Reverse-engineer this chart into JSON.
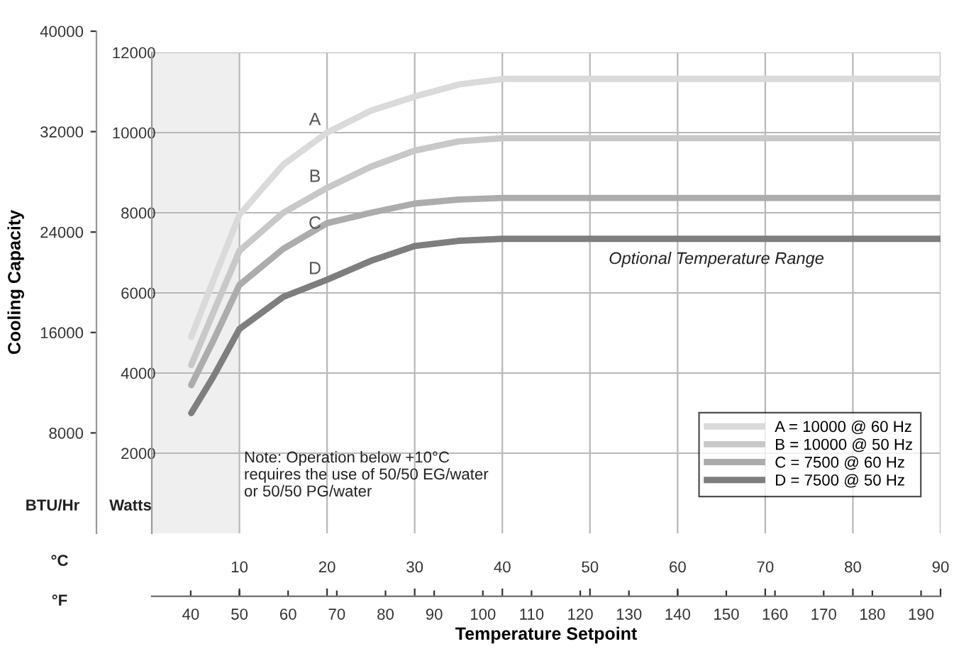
{
  "chart_data": {
    "type": "line",
    "xlabel": "Temperature Setpoint",
    "y2label": "Cooling Capacity",
    "x": [
      4.5,
      7,
      10,
      15,
      20,
      25,
      30,
      35,
      40,
      90
    ],
    "series": [
      {
        "name": "A = 10000 @ 60 Hz",
        "color": "#dadada",
        "values": [
          4900,
          6300,
          7950,
          9200,
          10000,
          10550,
          10900,
          11200,
          11340,
          11340
        ]
      },
      {
        "name": "B = 10000 @ 50 Hz",
        "color": "#c8c8c8",
        "values": [
          4200,
          5500,
          7050,
          8000,
          8620,
          9150,
          9550,
          9780,
          9860,
          9860
        ]
      },
      {
        "name": "C = 7500 @ 60 Hz",
        "color": "#acacac",
        "values": [
          3700,
          4800,
          6200,
          7100,
          7740,
          8000,
          8230,
          8330,
          8370,
          8370
        ]
      },
      {
        "name": "D = 7500 @ 50 Hz",
        "color": "#7e7e7e",
        "values": [
          3000,
          3900,
          5100,
          5900,
          6330,
          6800,
          7170,
          7300,
          7350,
          7350
        ]
      }
    ],
    "xlim": [
      0,
      90
    ],
    "xticks": [
      10,
      20,
      30,
      40,
      50,
      60,
      70,
      80,
      90
    ],
    "x2lim": [
      32,
      194
    ],
    "x2ticks": [
      40,
      50,
      60,
      70,
      80,
      90,
      100,
      110,
      120,
      130,
      140,
      150,
      160,
      170,
      180,
      190
    ],
    "ylim": [
      0,
      12000
    ],
    "yticks": [
      2000,
      4000,
      6000,
      8000,
      10000,
      12000
    ],
    "y2lim": [
      0,
      40000
    ],
    "y2ticks": [
      8000,
      16000,
      24000,
      32000,
      40000
    ],
    "bands": [
      {
        "axis": "x",
        "from": 0,
        "to": 10,
        "color": "#efefef"
      }
    ],
    "annotations": [
      "A",
      "B",
      "C",
      "D",
      "Optional Temperature Range",
      "Note: Operation below +10°C\nrequires the use of 50/50 EG/water\nor 50/50 PG/water",
      "BTU/Hr",
      "Watts",
      "°C",
      "°F"
    ],
    "grid": true,
    "legend": "bottom right",
    "marker": "none",
    "line_style": "solid"
  }
}
